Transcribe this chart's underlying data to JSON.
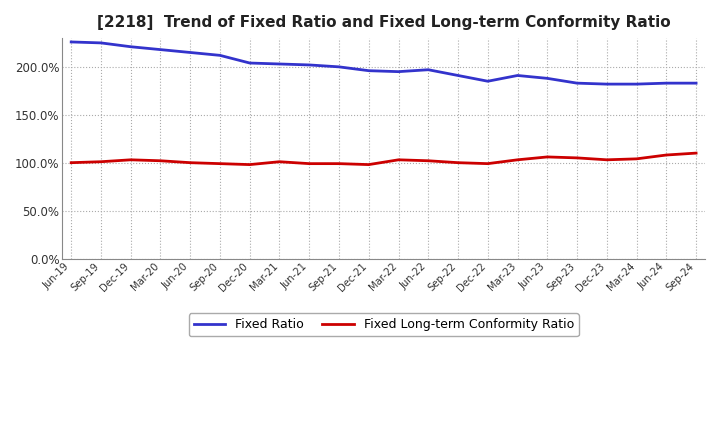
{
  "title": "[2218]  Trend of Fixed Ratio and Fixed Long-term Conformity Ratio",
  "x_labels": [
    "Jun-19",
    "Sep-19",
    "Dec-19",
    "Mar-20",
    "Jun-20",
    "Sep-20",
    "Dec-20",
    "Mar-21",
    "Jun-21",
    "Sep-21",
    "Dec-21",
    "Mar-22",
    "Jun-22",
    "Sep-22",
    "Dec-22",
    "Mar-23",
    "Jun-23",
    "Sep-23",
    "Dec-23",
    "Mar-24",
    "Jun-24",
    "Sep-24"
  ],
  "fixed_ratio": [
    226,
    225,
    221,
    218,
    215,
    212,
    204,
    203,
    202,
    200,
    196,
    195,
    197,
    191,
    185,
    191,
    188,
    183,
    182,
    182,
    183,
    183
  ],
  "fixed_lt_ratio": [
    100,
    101,
    103,
    102,
    100,
    99,
    98,
    101,
    99,
    99,
    98,
    103,
    102,
    100,
    99,
    103,
    106,
    105,
    103,
    104,
    108,
    110
  ],
  "ylim": [
    0,
    230
  ],
  "yticks": [
    0,
    50,
    100,
    150,
    200
  ],
  "ytick_labels": [
    "0.0%",
    "50.0%",
    "100.0%",
    "150.0%",
    "200.0%"
  ],
  "fixed_ratio_color": "#3333CC",
  "fixed_lt_color": "#CC0000",
  "bg_color": "#FFFFFF",
  "grid_color": "#AAAAAA",
  "title_fontsize": 11,
  "legend_labels": [
    "Fixed Ratio",
    "Fixed Long-term Conformity Ratio"
  ]
}
